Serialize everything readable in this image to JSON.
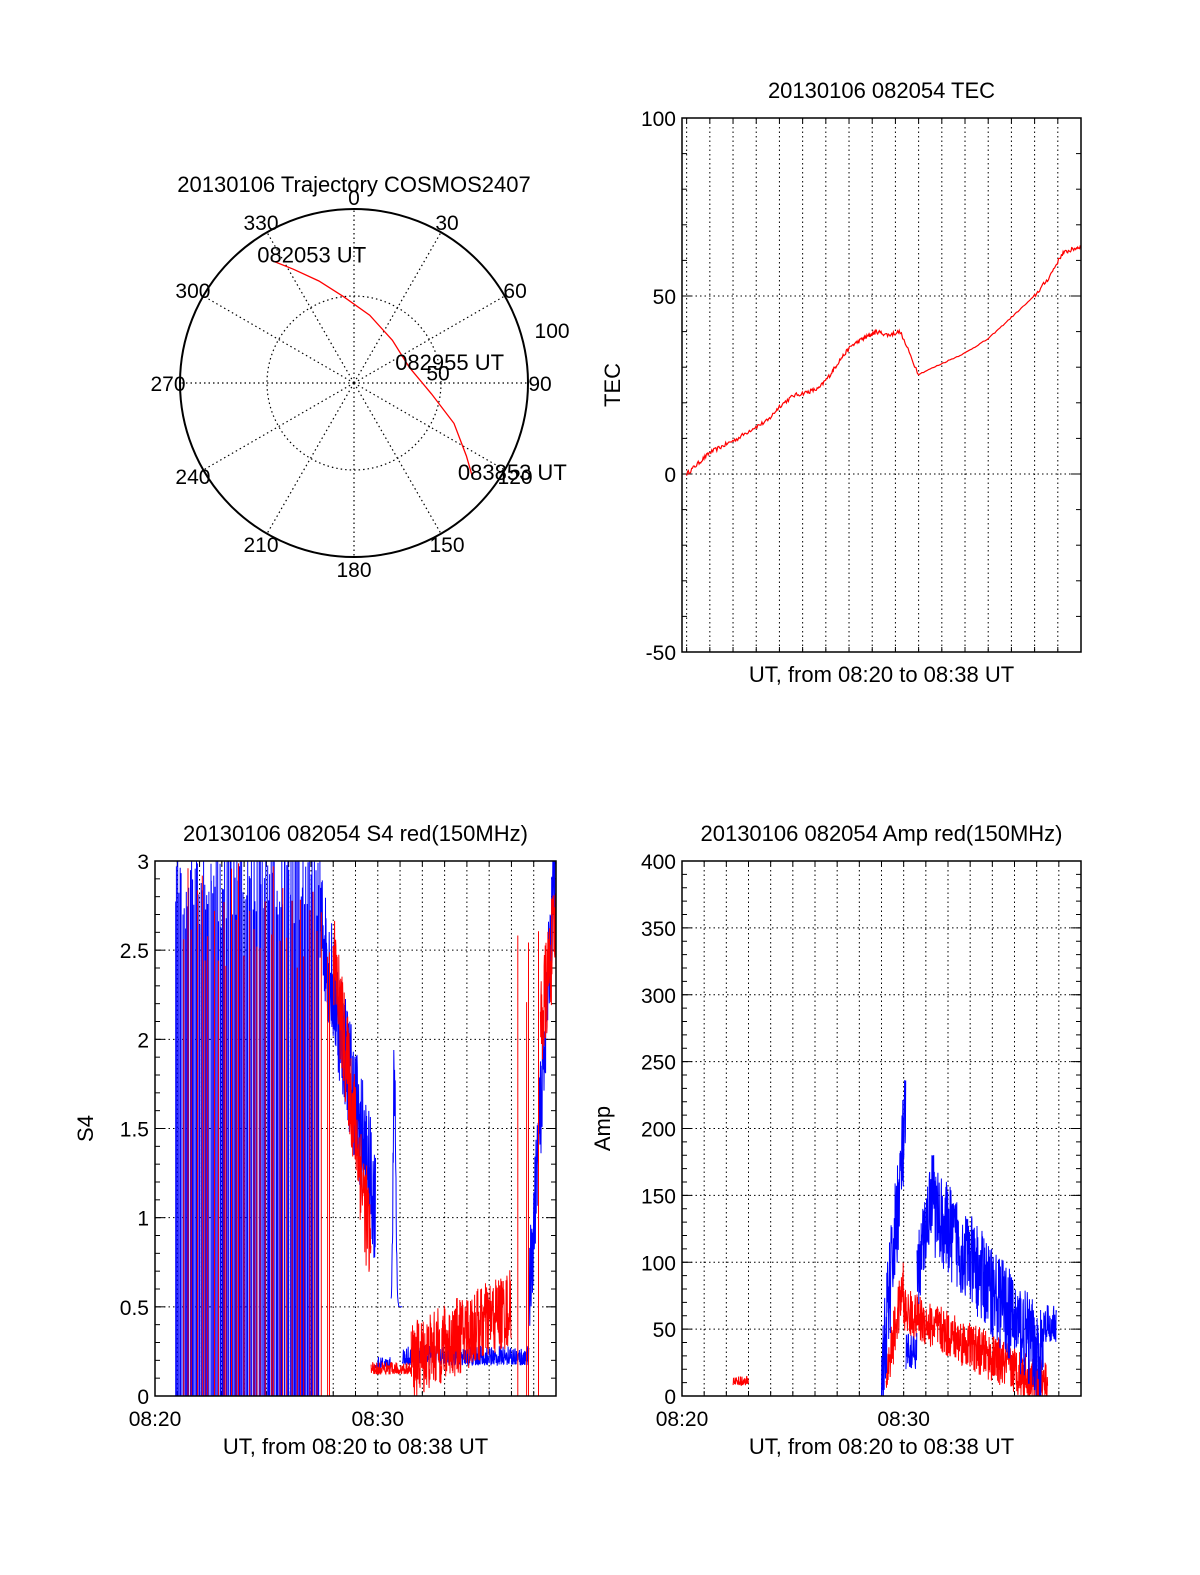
{
  "chart_data": [
    {
      "type": "polar",
      "title": "20130106 Trajectory COSMOS2407",
      "angle_labels": [
        "0",
        "30",
        "60",
        "90",
        "120",
        "150",
        "180",
        "210",
        "240",
        "270",
        "300",
        "330"
      ],
      "angle_values": [
        0,
        30,
        60,
        90,
        120,
        150,
        180,
        210,
        240,
        270,
        300,
        330
      ],
      "radius_ticks": [
        {
          "value": 50,
          "label": "50"
        },
        {
          "value": 100,
          "label": "100"
        }
      ],
      "rlim": [
        0,
        100
      ],
      "grid": true,
      "series": [
        {
          "color": "#ff0000",
          "points": [
            {
              "az": 326,
              "r": 85
            },
            {
              "az": 332,
              "r": 74
            },
            {
              "az": 341,
              "r": 62
            },
            {
              "az": 353,
              "r": 50
            },
            {
              "az": 13,
              "r": 40
            },
            {
              "az": 42,
              "r": 33
            },
            {
              "az": 74,
              "r": 33
            },
            {
              "az": 98,
              "r": 45
            },
            {
              "az": 112,
              "r": 62
            },
            {
              "az": 123,
              "r": 77
            },
            {
              "az": 128,
              "r": 86
            }
          ]
        }
      ],
      "annotations": [
        {
          "label": "082053 UT",
          "az": 326,
          "r": 85
        },
        {
          "label": "082955 UT",
          "az": 74,
          "r": 33
        },
        {
          "label": "083853 UT",
          "az": 128,
          "r": 86
        }
      ]
    },
    {
      "type": "line",
      "title": "20130106 082054 TEC",
      "xlabel": "UT, from 08:20 to 08:38 UT",
      "ylabel": "TEC",
      "xlim": [
        0.8,
        18.0
      ],
      "ylim": [
        -50,
        100
      ],
      "yticks": [
        -50,
        0,
        50,
        100
      ],
      "xgrid_minutes": [
        1,
        2,
        3,
        4,
        5,
        6,
        7,
        8,
        9,
        10,
        11,
        12,
        13,
        14,
        15,
        16,
        17
      ],
      "grid": true,
      "series": [
        {
          "color": "#ff0000",
          "x": [
            1.0,
            1.5,
            2.0,
            2.6,
            3.2,
            3.9,
            4.5,
            5.0,
            5.6,
            6.2,
            6.7,
            7.2,
            7.6,
            8.1,
            8.6,
            8.9,
            9.2,
            9.7,
            10.2,
            11.0,
            12.0,
            13.0,
            14.0,
            15.0,
            16.0,
            16.6,
            17.2,
            17.6,
            18.0
          ],
          "y": [
            0,
            3,
            6,
            8,
            10,
            13,
            15,
            19,
            22,
            23,
            24,
            28,
            32,
            36,
            38,
            39,
            40,
            39,
            40,
            28,
            31,
            34,
            38,
            44,
            50,
            55,
            62,
            63,
            64
          ],
          "noise": 1.2
        }
      ]
    },
    {
      "type": "line",
      "title": "20130106 082054 S4 red(150MHz)",
      "xlabel": "UT, from 08:20 to 08:38 UT",
      "ylabel": "S4",
      "xlim": [
        0,
        18
      ],
      "ylim": [
        0,
        3
      ],
      "yticks": [
        0,
        0.5,
        1,
        1.5,
        2,
        2.5,
        3
      ],
      "ytick_labels": [
        "0",
        "0.5",
        "1",
        "1.5",
        "2",
        "2.5",
        "3"
      ],
      "xticks": [
        {
          "value": 0,
          "label": "08:20"
        },
        {
          "value": 10,
          "label": "08:30"
        }
      ],
      "xgrid_minutes": [
        1,
        2,
        3,
        4,
        5,
        6,
        7,
        8,
        9,
        10,
        11,
        12,
        13,
        14,
        15,
        16,
        17
      ],
      "grid": true,
      "series": [
        {
          "color": "#0000ff",
          "segments": [
            {
              "type": "bars",
              "x": [
                0.9,
                7.4
              ],
              "lo": 0,
              "hi": 3,
              "count": 120,
              "base": 2.9
            },
            {
              "type": "decay",
              "x": [
                7.4,
                9.9
              ],
              "from": 2.6,
              "to": 1.0,
              "noise": 0.35
            },
            {
              "type": "noise",
              "x": [
                9.9,
                10.6
              ],
              "base": 0.15,
              "noise": 0.05
            },
            {
              "type": "spike",
              "x": [
                10.6,
                11.1
              ],
              "peak": 2.0,
              "base": 0.5
            },
            {
              "type": "noise",
              "x": [
                11.1,
                16.8
              ],
              "base": 0.17,
              "noise": 0.08
            },
            {
              "type": "rise",
              "x": [
                16.8,
                18.0
              ],
              "from": 0.5,
              "to": 3.0,
              "noise": 0.3
            }
          ]
        },
        {
          "color": "#ff0000",
          "segments": [
            {
              "type": "bars",
              "x": [
                1.2,
                8.0
              ],
              "lo": 0,
              "hi": 3,
              "count": 35,
              "base": 2.7
            },
            {
              "type": "decay",
              "x": [
                8.0,
                9.7
              ],
              "from": 2.4,
              "to": 0.75,
              "noise": 0.3
            },
            {
              "type": "noise",
              "x": [
                9.7,
                11.5
              ],
              "base": 0.12,
              "noise": 0.05
            },
            {
              "type": "rise",
              "x": [
                11.5,
                16.0
              ],
              "from": 0.15,
              "to": 0.45,
              "noise": 0.22
            },
            {
              "type": "bars",
              "x": [
                16.2,
                17.3
              ],
              "lo": 0,
              "hi": 3,
              "count": 4,
              "base": 2.5
            },
            {
              "type": "rise",
              "x": [
                17.3,
                18.0
              ],
              "from": 2.0,
              "to": 2.6,
              "noise": 0.3
            }
          ]
        }
      ]
    },
    {
      "type": "line",
      "title": "20130106 082054 Amp red(150MHz)",
      "xlabel": "UT, from 08:20 to 08:38 UT",
      "ylabel": "Amp",
      "xlim": [
        0,
        18
      ],
      "ylim": [
        0,
        400
      ],
      "yticks": [
        0,
        50,
        100,
        150,
        200,
        250,
        300,
        350,
        400
      ],
      "xticks": [
        {
          "value": 0,
          "label": "08:20"
        },
        {
          "value": 10,
          "label": "08:30"
        }
      ],
      "xgrid_minutes": [
        1,
        2,
        3,
        4,
        5,
        6,
        7,
        8,
        9,
        10,
        11,
        12,
        13,
        14,
        15,
        16,
        17
      ],
      "grid": true,
      "series": [
        {
          "color": "#ff0000",
          "segments": [
            {
              "type": "flat",
              "x": [
                0.9,
                2.3
              ],
              "value": 0
            },
            {
              "type": "noise",
              "x": [
                2.3,
                3.0
              ],
              "base": 8,
              "noise": 5
            },
            {
              "type": "flat",
              "x": [
                3.0,
                9.2
              ],
              "value": 0
            },
            {
              "type": "rise",
              "x": [
                9.2,
                10.0
              ],
              "from": 10,
              "to": 80,
              "noise": 20
            },
            {
              "type": "decay",
              "x": [
                10.0,
                16.5
              ],
              "from": 60,
              "to": 3,
              "noise": 18
            },
            {
              "type": "flat",
              "x": [
                16.5,
                18.0
              ],
              "value": 0
            }
          ]
        },
        {
          "color": "#0000ff",
          "segments": [
            {
              "type": "flat",
              "x": [
                0.9,
                9.0
              ],
              "value": 0
            },
            {
              "type": "rise",
              "x": [
                9.0,
                10.1
              ],
              "from": 5,
              "to": 200,
              "noise": 40
            },
            {
              "type": "noise",
              "x": [
                10.1,
                10.6
              ],
              "base": 20,
              "noise": 20
            },
            {
              "type": "rise",
              "x": [
                10.6,
                11.4
              ],
              "from": 80,
              "to": 160,
              "noise": 30
            },
            {
              "type": "decay",
              "x": [
                11.4,
                16.3
              ],
              "from": 130,
              "to": 20,
              "noise": 35
            },
            {
              "type": "noise",
              "x": [
                16.3,
                16.9
              ],
              "base": 40,
              "noise": 20
            },
            {
              "type": "flat",
              "x": [
                16.9,
                18.0
              ],
              "value": 0
            }
          ]
        }
      ]
    }
  ]
}
